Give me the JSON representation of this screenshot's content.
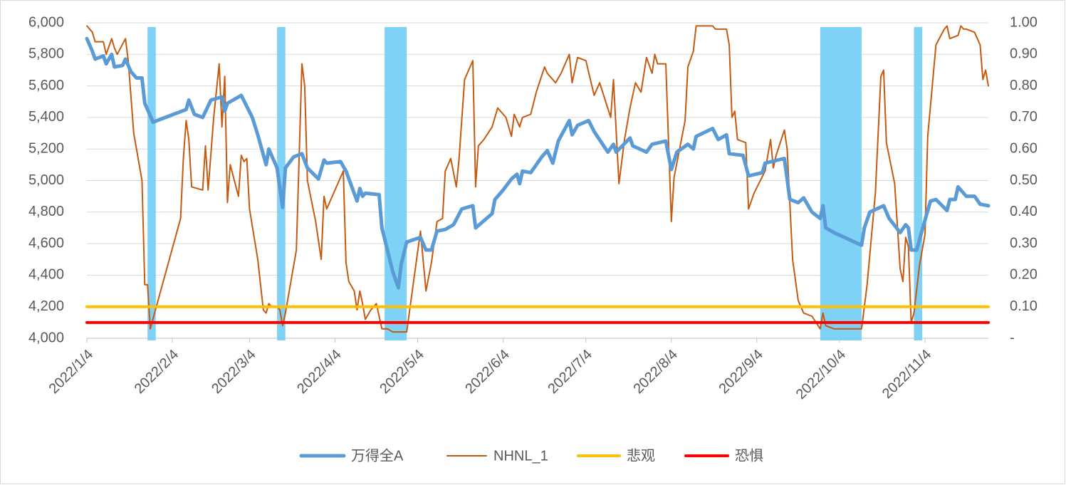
{
  "chart_data": {
    "type": "line",
    "xlim": [
      "2022/1/4",
      "2022/11/27"
    ],
    "xticks": [
      "2022/1/4",
      "2022/2/4",
      "2022/3/4",
      "2022/4/4",
      "2022/5/4",
      "2022/6/4",
      "2022/7/4",
      "2022/8/4",
      "2022/9/4",
      "2022/10/4",
      "2022/11/4"
    ],
    "ylim": [
      4000,
      6000
    ],
    "yticks": [
      {
        "value": 4000,
        "label": "4,000"
      },
      {
        "value": 4200,
        "label": "4,200"
      },
      {
        "value": 4400,
        "label": "4,400"
      },
      {
        "value": 4600,
        "label": "4,600"
      },
      {
        "value": 4800,
        "label": "4,800"
      },
      {
        "value": 5000,
        "label": "5,000"
      },
      {
        "value": 5200,
        "label": "5,200"
      },
      {
        "value": 5400,
        "label": "5,400"
      },
      {
        "value": 5600,
        "label": "5,600"
      },
      {
        "value": 5800,
        "label": "5,800"
      },
      {
        "value": 6000,
        "label": "6,000"
      }
    ],
    "y2lim": [
      0,
      1
    ],
    "y2ticks": [
      {
        "value": 0,
        "label": "-"
      },
      {
        "value": 0.1,
        "label": "0.10"
      },
      {
        "value": 0.2,
        "label": "0.20"
      },
      {
        "value": 0.3,
        "label": "0.30"
      },
      {
        "value": 0.4,
        "label": "0.40"
      },
      {
        "value": 0.5,
        "label": "0.50"
      },
      {
        "value": 0.6,
        "label": "0.60"
      },
      {
        "value": 0.7,
        "label": "0.70"
      },
      {
        "value": 0.8,
        "label": "0.80"
      },
      {
        "value": 0.9,
        "label": "0.90"
      },
      {
        "value": 1,
        "label": "1.00"
      }
    ],
    "grid": true,
    "legend": "bottom",
    "highlight_color": "#6fcdf5",
    "highlights": [
      {
        "start": "2022/1/26",
        "end": "2022/1/29"
      },
      {
        "start": "2022/3/14",
        "end": "2022/3/17"
      },
      {
        "start": "2022/4/22",
        "end": "2022/4/30"
      },
      {
        "start": "2022/9/27",
        "end": "2022/10/12"
      },
      {
        "start": "2022/10/31",
        "end": "2022/11/3"
      }
    ],
    "series": [
      {
        "name": "万得全A",
        "color": "#5b9bd5",
        "x": [
          "2022/1/4",
          "2022/1/6",
          "2022/1/7",
          "2022/1/10",
          "2022/1/11",
          "2022/1/13",
          "2022/1/14",
          "2022/1/17",
          "2022/1/18",
          "2022/1/20",
          "2022/1/22",
          "2022/1/24",
          "2022/1/25",
          "2022/1/28",
          "2022/2/9",
          "2022/2/10",
          "2022/2/12",
          "2022/2/15",
          "2022/2/18",
          "2022/2/22",
          "2022/2/23",
          "2022/2/24",
          "2022/3/1",
          "2022/3/5",
          "2022/3/7",
          "2022/3/10",
          "2022/3/11",
          "2022/3/14",
          "2022/3/16",
          "2022/3/17",
          "2022/3/20",
          "2022/3/23",
          "2022/3/25",
          "2022/3/29",
          "2022/3/31",
          "2022/4/1",
          "2022/4/6",
          "2022/4/8",
          "2022/4/12",
          "2022/4/13",
          "2022/4/14",
          "2022/4/15",
          "2022/4/20",
          "2022/4/21",
          "2022/4/25",
          "2022/4/27",
          "2022/4/28",
          "2022/4/30",
          "2022/5/5",
          "2022/5/7",
          "2022/5/9",
          "2022/5/11",
          "2022/5/14",
          "2022/5/17",
          "2022/5/20",
          "2022/5/24",
          "2022/5/25",
          "2022/5/31",
          "2022/6/1",
          "2022/6/4",
          "2022/6/7",
          "2022/6/9",
          "2022/6/10",
          "2022/6/11",
          "2022/6/14",
          "2022/6/18",
          "2022/6/20",
          "2022/6/22",
          "2022/6/24",
          "2022/6/28",
          "2022/6/29",
          "2022/7/1",
          "2022/7/5",
          "2022/7/7",
          "2022/7/12",
          "2022/7/14",
          "2022/7/15",
          "2022/7/20",
          "2022/7/21",
          "2022/7/26",
          "2022/7/28",
          "2022/8/2",
          "2022/8/4",
          "2022/8/6",
          "2022/8/10",
          "2022/8/12",
          "2022/8/13",
          "2022/8/19",
          "2022/8/21",
          "2022/8/24",
          "2022/8/25",
          "2022/8/30",
          "2022/9/1",
          "2022/9/6",
          "2022/9/7",
          "2022/9/14",
          "2022/9/16",
          "2022/9/19",
          "2022/9/21",
          "2022/9/24",
          "2022/9/27",
          "2022/9/28",
          "2022/9/29",
          "2022/10/2",
          "2022/10/12",
          "2022/10/13",
          "2022/10/15",
          "2022/10/20",
          "2022/10/22",
          "2022/10/26",
          "2022/10/28",
          "2022/10/29",
          "2022/10/30",
          "2022/11/1",
          "2022/11/4",
          "2022/11/6",
          "2022/11/8",
          "2022/11/12",
          "2022/11/13",
          "2022/11/15",
          "2022/11/16",
          "2022/11/19",
          "2022/11/22",
          "2022/11/24",
          "2022/11/27"
        ],
        "values": [
          5900,
          5820,
          5770,
          5790,
          5740,
          5800,
          5720,
          5730,
          5770,
          5690,
          5650,
          5650,
          5490,
          5370,
          5450,
          5510,
          5420,
          5400,
          5510,
          5530,
          5440,
          5490,
          5540,
          5400,
          5290,
          5100,
          5200,
          5080,
          4830,
          5080,
          5150,
          5170,
          5080,
          5010,
          5130,
          5110,
          5120,
          5060,
          4870,
          4950,
          4900,
          4920,
          4910,
          4700,
          4420,
          4320,
          4470,
          4610,
          4640,
          4560,
          4560,
          4680,
          4690,
          4720,
          4820,
          4840,
          4700,
          4790,
          4880,
          4940,
          5010,
          5040,
          4980,
          5060,
          5050,
          5150,
          5190,
          5110,
          5250,
          5380,
          5290,
          5350,
          5380,
          5310,
          5180,
          5230,
          5180,
          5270,
          5220,
          5180,
          5230,
          5250,
          5070,
          5180,
          5230,
          5200,
          5280,
          5330,
          5260,
          5290,
          5170,
          5160,
          5030,
          5050,
          5110,
          5140,
          4880,
          4860,
          4890,
          4800,
          4760,
          4840,
          4700,
          4670,
          4590,
          4700,
          4800,
          4840,
          4760,
          4670,
          4720,
          4700,
          4560,
          4560,
          4750,
          4870,
          4880,
          4810,
          4880,
          4880,
          4960,
          4900,
          4900,
          4850,
          4840
        ]
      },
      {
        "name": "NHNL_1",
        "color": "#c55a11",
        "axis": "y2",
        "x": [
          "2022/1/4",
          "2022/1/6",
          "2022/1/7",
          "2022/1/10",
          "2022/1/11",
          "2022/1/13",
          "2022/1/14",
          "2022/1/15",
          "2022/1/18",
          "2022/1/19",
          "2022/1/21",
          "2022/1/24",
          "2022/1/25",
          "2022/1/26",
          "2022/1/27",
          "2022/2/7",
          "2022/2/8",
          "2022/2/9",
          "2022/2/10",
          "2022/2/11",
          "2022/2/15",
          "2022/2/16",
          "2022/2/17",
          "2022/2/19",
          "2022/2/21",
          "2022/2/22",
          "2022/2/23",
          "2022/2/24",
          "2022/2/25",
          "2022/2/28",
          "2022/3/1",
          "2022/3/2",
          "2022/3/3",
          "2022/3/4",
          "2022/3/7",
          "2022/3/9",
          "2022/3/10",
          "2022/3/11",
          "2022/3/12",
          "2022/3/14",
          "2022/3/15",
          "2022/3/16",
          "2022/3/17",
          "2022/3/21",
          "2022/3/23",
          "2022/3/24",
          "2022/3/25",
          "2022/3/28",
          "2022/3/30",
          "2022/3/31",
          "2022/4/1",
          "2022/4/7",
          "2022/4/8",
          "2022/4/9",
          "2022/4/11",
          "2022/4/12",
          "2022/4/13",
          "2022/4/14",
          "2022/4/15",
          "2022/4/17",
          "2022/4/19",
          "2022/4/21",
          "2022/4/23",
          "2022/4/25",
          "2022/4/30",
          "2022/5/5",
          "2022/5/7",
          "2022/5/9",
          "2022/5/11",
          "2022/5/13",
          "2022/5/14",
          "2022/5/16",
          "2022/5/18",
          "2022/5/19",
          "2022/5/21",
          "2022/5/23",
          "2022/5/24",
          "2022/5/25",
          "2022/5/26",
          "2022/5/28",
          "2022/5/31",
          "2022/6/2",
          "2022/6/5",
          "2022/6/7",
          "2022/6/8",
          "2022/6/10",
          "2022/6/11",
          "2022/6/14",
          "2022/6/16",
          "2022/6/19",
          "2022/6/20",
          "2022/6/23",
          "2022/6/25",
          "2022/6/28",
          "2022/6/29",
          "2022/7/1",
          "2022/7/4",
          "2022/7/7",
          "2022/7/9",
          "2022/7/13",
          "2022/7/14",
          "2022/7/16",
          "2022/7/18",
          "2022/7/20",
          "2022/7/22",
          "2022/7/24",
          "2022/7/26",
          "2022/7/28",
          "2022/7/29",
          "2022/7/30",
          "2022/8/2",
          "2022/8/4",
          "2022/8/5",
          "2022/8/9",
          "2022/8/10",
          "2022/8/12",
          "2022/8/13",
          "2022/8/19",
          "2022/8/20",
          "2022/8/24",
          "2022/8/25",
          "2022/8/26",
          "2022/8/27",
          "2022/8/28",
          "2022/8/31",
          "2022/9/1",
          "2022/9/3",
          "2022/9/7",
          "2022/9/9",
          "2022/9/10",
          "2022/9/11",
          "2022/9/14",
          "2022/9/15",
          "2022/9/17",
          "2022/9/19",
          "2022/9/20",
          "2022/9/21",
          "2022/9/24",
          "2022/9/27",
          "2022/9/28",
          "2022/9/29",
          "2022/10/2",
          "2022/10/12",
          "2022/10/14",
          "2022/10/17",
          "2022/10/19",
          "2022/10/20",
          "2022/10/21",
          "2022/10/24",
          "2022/10/26",
          "2022/10/27",
          "2022/10/28",
          "2022/10/29",
          "2022/10/30",
          "2022/10/31",
          "2022/11/2",
          "2022/11/4",
          "2022/11/5",
          "2022/11/8",
          "2022/11/11",
          "2022/11/12",
          "2022/11/13",
          "2022/11/16",
          "2022/11/17",
          "2022/11/18",
          "2022/11/19",
          "2022/11/22",
          "2022/11/24",
          "2022/11/25",
          "2022/11/26",
          "2022/11/27"
        ],
        "values": [
          0.99,
          0.97,
          0.94,
          0.94,
          0.9,
          0.95,
          0.92,
          0.9,
          0.95,
          0.88,
          0.65,
          0.5,
          0.17,
          0.17,
          0.03,
          0.38,
          0.57,
          0.69,
          0.63,
          0.48,
          0.47,
          0.61,
          0.47,
          0.7,
          0.87,
          0.67,
          0.83,
          0.43,
          0.55,
          0.45,
          0.58,
          0.56,
          0.57,
          0.41,
          0.25,
          0.09,
          0.08,
          0.11,
          0.1,
          0.1,
          0.09,
          0.04,
          0.08,
          0.28,
          0.87,
          0.8,
          0.5,
          0.37,
          0.25,
          0.45,
          0.41,
          0.53,
          0.24,
          0.18,
          0.15,
          0.09,
          0.15,
          0.11,
          0.06,
          0.09,
          0.11,
          0.03,
          0.03,
          0.02,
          0.02,
          0.34,
          0.15,
          0.24,
          0.37,
          0.38,
          0.53,
          0.57,
          0.48,
          0.57,
          0.82,
          0.86,
          0.88,
          0.48,
          0.61,
          0.63,
          0.67,
          0.73,
          0.7,
          0.64,
          0.71,
          0.67,
          0.7,
          0.71,
          0.78,
          0.86,
          0.84,
          0.81,
          0.84,
          0.9,
          0.81,
          0.89,
          0.88,
          0.77,
          0.81,
          0.7,
          0.82,
          0.49,
          0.63,
          0.73,
          0.81,
          0.78,
          0.89,
          0.84,
          0.9,
          0.87,
          0.87,
          0.37,
          0.51,
          0.69,
          0.86,
          0.91,
          0.99,
          0.99,
          0.98,
          0.98,
          0.93,
          0.7,
          0.72,
          0.63,
          0.62,
          0.41,
          0.46,
          0.53,
          0.63,
          0.54,
          0.58,
          0.66,
          0.6,
          0.25,
          0.12,
          0.1,
          0.08,
          0.07,
          0.03,
          0.08,
          0.04,
          0.03,
          0.03,
          0.17,
          0.46,
          0.83,
          0.85,
          0.62,
          0.49,
          0.22,
          0.18,
          0.32,
          0.29,
          0.05,
          0.08,
          0.23,
          0.33,
          0.64,
          0.93,
          0.98,
          0.99,
          0.95,
          0.96,
          0.99,
          0.98,
          0.98,
          0.97,
          0.93,
          0.82,
          0.85,
          0.8
        ]
      },
      {
        "name": "悲观",
        "color": "#ffc000",
        "axis": "y2",
        "x": [
          "2022/1/4",
          "2022/11/27"
        ],
        "values": [
          0.1,
          0.1
        ]
      },
      {
        "name": "恐惧",
        "color": "#ff0000",
        "axis": "y2",
        "x": [
          "2022/1/4",
          "2022/11/27"
        ],
        "values": [
          0.05,
          0.05
        ]
      }
    ]
  }
}
